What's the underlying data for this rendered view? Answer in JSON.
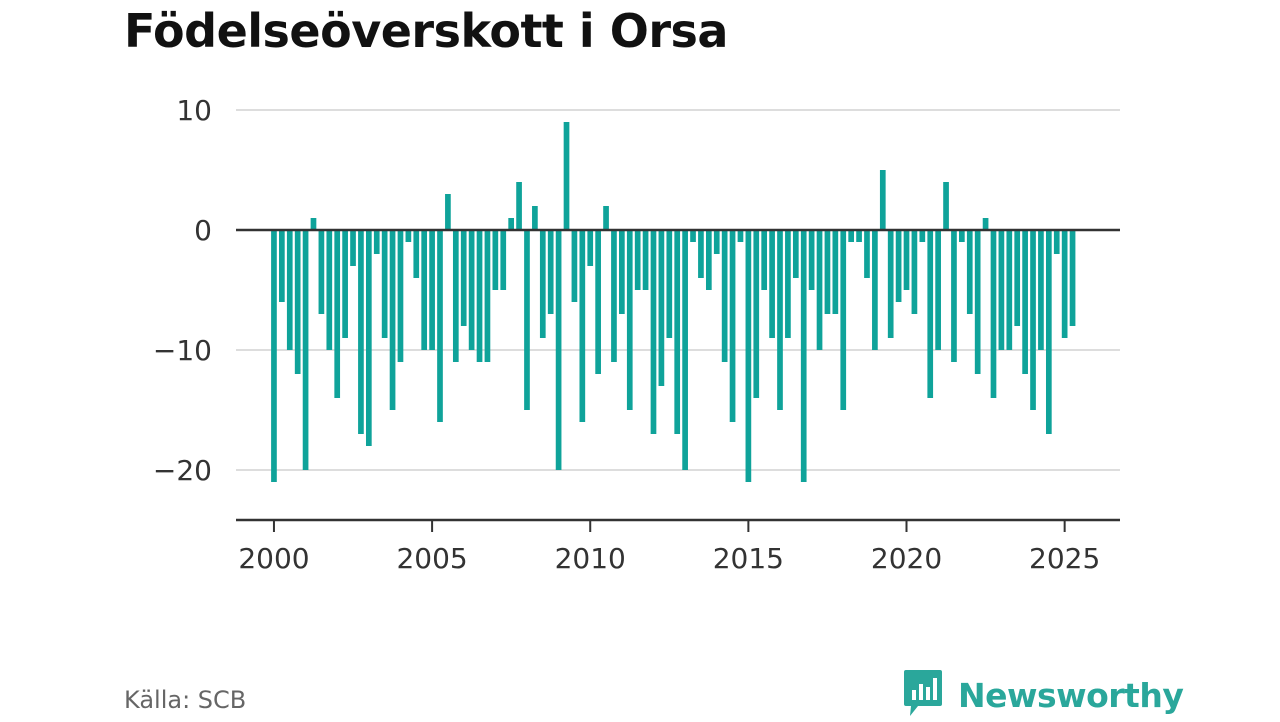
{
  "title": "Födelseöverskott i Orsa",
  "source": "Källa: SCB",
  "brand": {
    "name": "Newsworthy",
    "logo_icon": "newsworthy-bar-chart-bubble-icon"
  },
  "colors": {
    "bar": "#0fa39a",
    "grid": "#dddddd",
    "zero_line": "#333333",
    "axis": "#333333"
  },
  "chart_data": {
    "type": "bar",
    "title": "Födelseöverskott i Orsa",
    "xlabel": "",
    "ylabel": "",
    "ylim": [
      -24,
      10
    ],
    "xlim": [
      1998.8,
      2026.75
    ],
    "y_ticks": [
      10,
      0,
      -10,
      -20
    ],
    "y_tick_labels": [
      "10",
      "0",
      "−10",
      "−20"
    ],
    "x_ticks": [
      2000,
      2005,
      2010,
      2015,
      2020,
      2025
    ],
    "x_tick_labels": [
      "2000",
      "2005",
      "2010",
      "2015",
      "2020",
      "2025"
    ],
    "grid": true,
    "start_year": 2000,
    "bars_per_year": 4,
    "values": [
      -21,
      -6,
      -10,
      -12,
      -20,
      1,
      -7,
      -10,
      -14,
      -9,
      -3,
      -17,
      -18,
      -2,
      -9,
      -15,
      -11,
      -1,
      -4,
      -10,
      -10,
      -16,
      3,
      -11,
      -8,
      -10,
      -11,
      -11,
      -5,
      -5,
      1,
      4,
      -15,
      2,
      -9,
      -7,
      -20,
      9,
      -6,
      -16,
      -3,
      -12,
      2,
      -11,
      -7,
      -15,
      -5,
      -5,
      -17,
      -13,
      -9,
      -17,
      -20,
      -1,
      -4,
      -5,
      -2,
      -11,
      -16,
      -1,
      -21,
      -14,
      -5,
      -9,
      -15,
      -9,
      -4,
      -21,
      -5,
      -10,
      -7,
      -7,
      -15,
      -1,
      -1,
      -4,
      -10,
      5,
      -9,
      -6,
      -5,
      -7,
      -1,
      -14,
      -10,
      4,
      -11,
      -1,
      -7,
      -12,
      1,
      -14,
      -10,
      -10,
      -8,
      -12,
      -15,
      -10,
      -17,
      -2,
      -9,
      -8
    ]
  }
}
